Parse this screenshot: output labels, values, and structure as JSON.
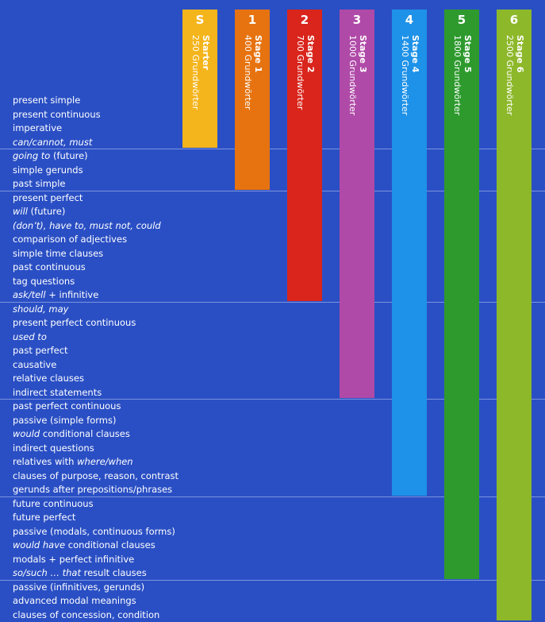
{
  "colors": {
    "background": "#2a4fc4",
    "stage_colors": [
      "#f4b41b",
      "#e67310",
      "#d9251c",
      "#b04aa8",
      "#1e92e8",
      "#2e9a2e",
      "#8db82a"
    ]
  },
  "stages": [
    {
      "badge": "S",
      "name": "Starter",
      "words": "250 Grundwörter"
    },
    {
      "badge": "1",
      "name": "Stage 1",
      "words": "400 Grundwörter"
    },
    {
      "badge": "2",
      "name": "Stage 2",
      "words": "700 Grundwörter"
    },
    {
      "badge": "3",
      "name": "Stage 3",
      "words": "1000 Grundwörter"
    },
    {
      "badge": "4",
      "name": "Stage 4",
      "words": "1400 Grundwörter"
    },
    {
      "badge": "5",
      "name": "Stage 5",
      "words": "1800 Grundwörter"
    },
    {
      "badge": "6",
      "name": "Stage 6",
      "words": "2500 Grundwörter"
    }
  ],
  "grammar_groups": [
    {
      "stage": "Starter",
      "items": [
        "present simple",
        "present continuous",
        "imperative",
        "*can/cannot, must*"
      ]
    },
    {
      "stage": "Stage 1",
      "items": [
        "*going to* (future)",
        "simple gerunds",
        "past simple"
      ]
    },
    {
      "stage": "Stage 2",
      "items": [
        "present perfect",
        "*will* (future)",
        "*(don’t), have to, must not, could*",
        "comparison of adjectives",
        "simple time clauses",
        "past continuous",
        "tag questions",
        "*ask/tell* + infinitive"
      ]
    },
    {
      "stage": "Stage 3",
      "items": [
        "*should, may*",
        "present perfect continuous",
        "*used to*",
        "past perfect",
        "causative",
        "relative clauses",
        "indirect statements"
      ]
    },
    {
      "stage": "Stage 4",
      "items": [
        "past perfect continuous",
        "passive (simple forms)",
        "*would* conditional clauses",
        "indirect questions",
        "relatives with *where/when*",
        "clauses of purpose, reason, contrast",
        "gerunds after prepositions/phrases"
      ]
    },
    {
      "stage": "Stage 5",
      "items": [
        "future continuous",
        "future perfect",
        "passive (modals, continuous forms)",
        "*would have* conditional clauses",
        "modals + perfect infinitive",
        "*so/such … that* result clauses"
      ]
    },
    {
      "stage": "Stage 6",
      "items": [
        "passive (infinitives, gerunds)",
        "advanced modal meanings",
        "clauses of concession, condition"
      ]
    }
  ]
}
